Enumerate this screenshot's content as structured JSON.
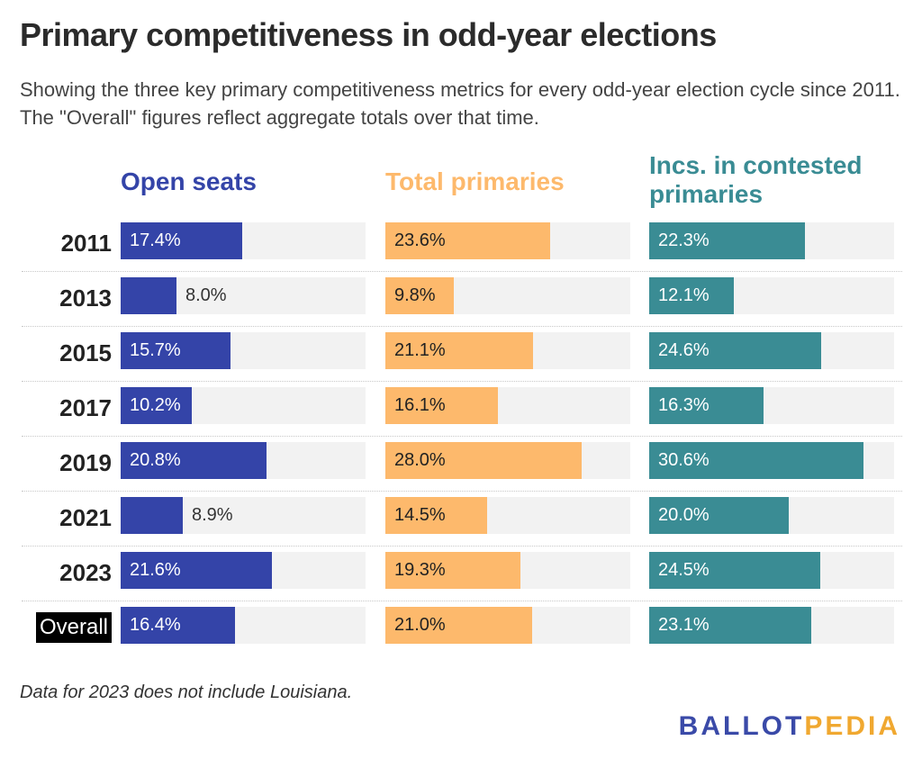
{
  "title": "Primary competitiveness in odd-year elections",
  "subtitle": "Showing the three key primary competitiveness metrics for every odd-year election cycle since 2011. The \"Overall\" figures reflect aggregate totals over that time.",
  "footnote": "Data for 2023 does not include Louisiana.",
  "logo": {
    "part1": "BALLOT",
    "part2": "PEDIA",
    "color1": "#3a4aa8",
    "color2": "#f0a830"
  },
  "colors": {
    "track": "#f2f2f2"
  },
  "chart_data": {
    "type": "bar",
    "orientation": "horizontal",
    "layout": "small-multiples",
    "categories": [
      "2011",
      "2013",
      "2015",
      "2017",
      "2019",
      "2021",
      "2023",
      "Overall"
    ],
    "highlight_category": "Overall",
    "xlim": [
      0,
      35
    ],
    "grid": false,
    "value_suffix": "%",
    "series": [
      {
        "name": "Open seats",
        "color": "#3444a8",
        "values": [
          17.4,
          8.0,
          15.7,
          10.2,
          20.8,
          8.9,
          21.6,
          16.4
        ],
        "labels": [
          "17.4%",
          "8.0%",
          "15.7%",
          "10.2%",
          "20.8%",
          "8.9%",
          "21.6%",
          "16.4%"
        ]
      },
      {
        "name": "Total primaries",
        "color": "#fdb96c",
        "values": [
          23.6,
          9.8,
          21.1,
          16.1,
          28.0,
          14.5,
          19.3,
          21.0
        ],
        "labels": [
          "23.6%",
          "9.8%",
          "21.1%",
          "16.1%",
          "28.0%",
          "14.5%",
          "19.3%",
          "21.0%"
        ]
      },
      {
        "name": "Incs. in contested primaries",
        "color": "#3a8c94",
        "values": [
          22.3,
          12.1,
          24.6,
          16.3,
          30.6,
          20.0,
          24.5,
          23.1
        ],
        "labels": [
          "22.3%",
          "12.1%",
          "24.6%",
          "16.3%",
          "30.6%",
          "20.0%",
          "24.5%",
          "23.1%"
        ]
      }
    ]
  }
}
